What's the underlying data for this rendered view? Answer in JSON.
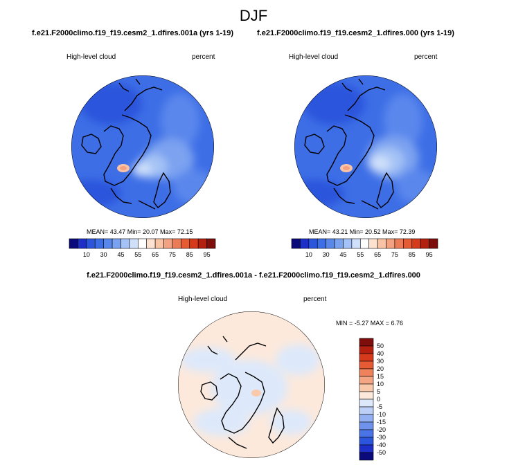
{
  "page": {
    "season": "DJF",
    "panel_titles": [
      "f.e21.F2000climo.f19_f19.cesm2_1.dfires.001a (yrs 1-19)",
      "f.e21.F2000climo.f19_f19.cesm2_1.dfires.000 (yrs 1-19)"
    ],
    "diff_title": "f.e21.F2000climo.f19_f19.cesm2_1.dfires.001a - f.e21.F2000climo.f19_f19.cesm2_1.dfires.000"
  },
  "chart_data": [
    {
      "type": "heatmap",
      "projection": "north polar stereographic",
      "variable": "High-level cloud",
      "units": "percent",
      "stats": {
        "mean": "43.47",
        "min": "20.07",
        "max": "72.15"
      },
      "stats_text": "MEAN=  43.47  Min=  20.07  Max=  72.15",
      "colorbar": {
        "orientation": "horizontal",
        "levels": [
          5,
          10,
          20,
          30,
          40,
          45,
          50,
          55,
          60,
          65,
          70,
          75,
          80,
          85,
          90,
          95
        ],
        "tick_labels": [
          "10",
          "30",
          "45",
          "55",
          "65",
          "75",
          "85",
          "95"
        ],
        "colors": [
          "#0a0a7a",
          "#1e2fc8",
          "#2b55dc",
          "#3d6ee6",
          "#5a87ec",
          "#7ba2f0",
          "#a4c2f5",
          "#cfe0fa",
          "#ffffff",
          "#fde2d0",
          "#f9c4a6",
          "#f3a180",
          "#ec7c58",
          "#e65a34",
          "#d53a1d",
          "#b3200f",
          "#7d0e0b"
        ]
      }
    },
    {
      "type": "heatmap",
      "projection": "north polar stereographic",
      "variable": "High-level cloud",
      "units": "percent",
      "stats": {
        "mean": "43.21",
        "min": "20.52",
        "max": "72.39"
      },
      "stats_text": "MEAN=  43.21  Min=  20.52  Max=  72.39",
      "colorbar": {
        "orientation": "horizontal",
        "levels": [
          5,
          10,
          20,
          30,
          40,
          45,
          50,
          55,
          60,
          65,
          70,
          75,
          80,
          85,
          90,
          95
        ],
        "tick_labels": [
          "10",
          "30",
          "45",
          "55",
          "65",
          "75",
          "85",
          "95"
        ],
        "colors": [
          "#0a0a7a",
          "#1e2fc8",
          "#2b55dc",
          "#3d6ee6",
          "#5a87ec",
          "#7ba2f0",
          "#a4c2f5",
          "#cfe0fa",
          "#ffffff",
          "#fde2d0",
          "#f9c4a6",
          "#f3a180",
          "#ec7c58",
          "#e65a34",
          "#d53a1d",
          "#b3200f",
          "#7d0e0b"
        ]
      }
    },
    {
      "type": "heatmap",
      "projection": "north polar stereographic",
      "variable": "High-level cloud",
      "units": "percent",
      "stats": {
        "min": "-5.27",
        "max": "6.76"
      },
      "stats_text": "MIN =  -5.27 MAX =   6.76",
      "colorbar": {
        "orientation": "vertical",
        "levels": [
          -50,
          -40,
          -30,
          -20,
          -15,
          -10,
          -5,
          0,
          5,
          10,
          15,
          20,
          30,
          40,
          50
        ],
        "tick_labels": [
          "50",
          "40",
          "30",
          "20",
          "15",
          "10",
          "5",
          "0",
          "-5",
          "-10",
          "-15",
          "-20",
          "-30",
          "-40",
          "-50"
        ],
        "colors": [
          "#0a0a7a",
          "#1e2fc8",
          "#2b55dc",
          "#4a74e6",
          "#6f93ec",
          "#93b0f2",
          "#bcd0f7",
          "#dde9fb",
          "#fce9dc",
          "#f9c9ac",
          "#f4a584",
          "#ee825c",
          "#e65a34",
          "#d53a1d",
          "#b3200f",
          "#7d0e0b"
        ]
      }
    }
  ]
}
